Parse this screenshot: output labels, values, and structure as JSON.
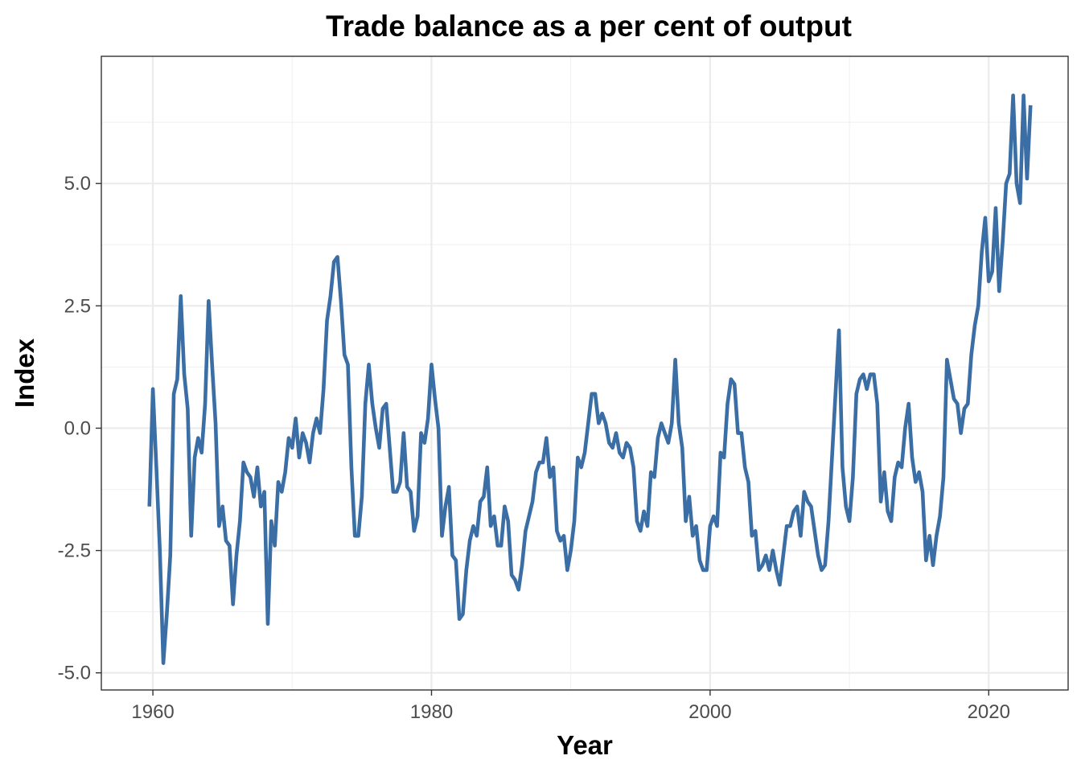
{
  "chart_data": {
    "type": "line",
    "title": "Trade balance as a per cent of output",
    "xlabel": "Year",
    "ylabel": "Index",
    "xlim": [
      1956.3,
      1965.7
    ],
    "ylim": [
      -5.35,
      7.6
    ],
    "x_ticks": [
      1960,
      1980,
      2000,
      2020
    ],
    "x_tick_labels": [
      "1960",
      "1980",
      "2000",
      "2020"
    ],
    "y_ticks": [
      -5.0,
      -2.5,
      0.0,
      2.5,
      5.0
    ],
    "y_tick_labels": [
      "-5.0",
      "-2.5",
      "0.0",
      "2.5",
      "5.0"
    ],
    "grid": true,
    "legend": "none",
    "line_color": "#3a6ea5",
    "series": [
      {
        "values": [
          -1.6,
          0.8,
          -0.8,
          -2.5,
          -4.8,
          -3.8,
          -2.6,
          0.7,
          1.0,
          2.7,
          1.1,
          0.4,
          -2.2,
          -0.6,
          -0.2,
          -0.5,
          0.5,
          2.6,
          1.3,
          0.1,
          -2.0,
          -1.6,
          -2.3,
          -2.4,
          -3.6,
          -2.6,
          -1.9,
          -0.7,
          -0.9,
          -1.0,
          -1.4,
          -0.8,
          -1.6,
          -1.3,
          -4.0,
          -1.9,
          -2.4,
          -1.1,
          -1.3,
          -0.9,
          -0.2,
          -0.4,
          0.2,
          -0.6,
          -0.1,
          -0.3,
          -0.7,
          -0.1,
          0.2,
          -0.1,
          0.8,
          2.2,
          2.7,
          3.4,
          3.5,
          2.6,
          1.5,
          1.3,
          -0.8,
          -2.2,
          -2.2,
          -1.4,
          0.5,
          1.3,
          0.5,
          0.0,
          -0.4,
          0.4,
          0.5,
          -0.4,
          -1.3,
          -1.3,
          -1.1,
          -0.1,
          -1.2,
          -1.3,
          -2.1,
          -1.8,
          -0.1,
          -0.3,
          0.2,
          1.3,
          0.6,
          0.0,
          -2.2,
          -1.6,
          -1.2,
          -2.6,
          -2.7,
          -3.9,
          -3.8,
          -2.9,
          -2.3,
          -2.0,
          -2.2,
          -1.5,
          -1.4,
          -0.8,
          -2.0,
          -1.8,
          -2.4,
          -2.4,
          -1.6,
          -1.9,
          -3.0,
          -3.1,
          -3.3,
          -2.8,
          -2.1,
          -1.8,
          -1.5,
          -0.9,
          -0.7,
          -0.7,
          -0.2,
          -1.0,
          -0.8,
          -2.1,
          -2.3,
          -2.2,
          -2.9,
          -2.5,
          -1.9,
          -0.6,
          -0.8,
          -0.5,
          0.1,
          0.7,
          0.7,
          0.1,
          0.3,
          0.1,
          -0.3,
          -0.4,
          -0.1,
          -0.5,
          -0.6,
          -0.3,
          -0.4,
          -0.8,
          -1.9,
          -2.1,
          -1.7,
          -2.0,
          -0.9,
          -1.0,
          -0.2,
          0.1,
          -0.1,
          -0.3,
          0.1,
          1.4,
          0.1,
          -0.4,
          -1.9,
          -1.4,
          -2.2,
          -2.0,
          -2.7,
          -2.9,
          -2.9,
          -2.0,
          -1.8,
          -2.0,
          -0.5,
          -0.6,
          0.5,
          1.0,
          0.9,
          -0.1,
          -0.1,
          -0.8,
          -1.1,
          -2.2,
          -2.1,
          -2.9,
          -2.8,
          -2.6,
          -2.9,
          -2.5,
          -2.9,
          -3.2,
          -2.6,
          -2.0,
          -2.0,
          -1.7,
          -1.6,
          -2.2,
          -1.3,
          -1.5,
          -1.6,
          -2.1,
          -2.6,
          -2.9,
          -2.8,
          -1.9,
          -0.6,
          0.7,
          2.0,
          -0.8,
          -1.6,
          -1.9,
          -1.0,
          0.7,
          1.0,
          1.1,
          0.8,
          1.1,
          1.1,
          0.5,
          -1.5,
          -0.9,
          -1.7,
          -1.9,
          -1.0,
          -0.7,
          -0.8,
          0.0,
          0.5,
          -0.6,
          -1.1,
          -0.9,
          -1.3,
          -2.7,
          -2.2,
          -2.8,
          -2.2,
          -1.8,
          -1.0,
          1.4,
          1.0,
          0.6,
          0.5,
          -0.1,
          0.4,
          0.5,
          1.5,
          2.1,
          2.5,
          3.6,
          4.3,
          3.0,
          3.2,
          4.5,
          2.8,
          3.8,
          5.0,
          5.2,
          6.8,
          5.0,
          4.6,
          6.8,
          5.1,
          6.6
        ]
      }
    ]
  }
}
